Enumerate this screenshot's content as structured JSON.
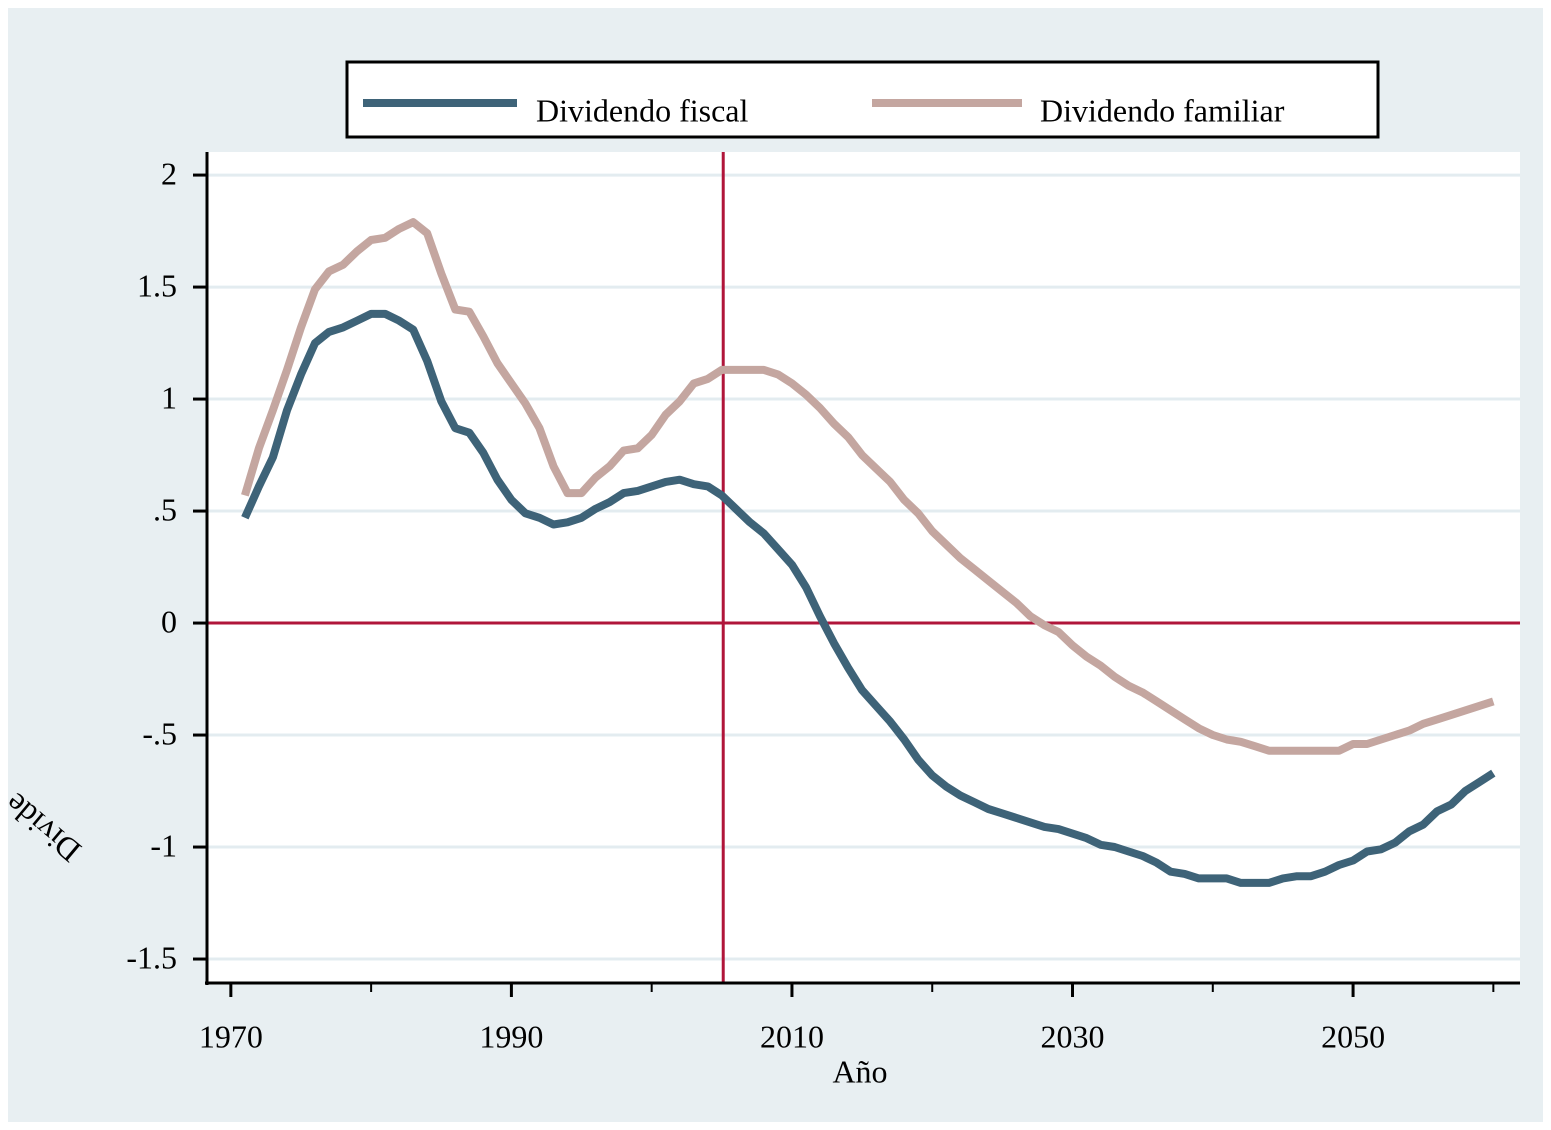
{
  "chart_data": {
    "type": "line",
    "x_label": "Año",
    "y_label": "Divide",
    "x": [
      1971,
      1972,
      1973,
      1974,
      1975,
      1976,
      1977,
      1978,
      1979,
      1980,
      1981,
      1982,
      1983,
      1984,
      1985,
      1986,
      1987,
      1988,
      1989,
      1990,
      1991,
      1992,
      1993,
      1994,
      1995,
      1996,
      1997,
      1998,
      1999,
      2000,
      2001,
      2002,
      2003,
      2004,
      2005,
      2006,
      2007,
      2008,
      2009,
      2010,
      2011,
      2012,
      2013,
      2014,
      2015,
      2016,
      2017,
      2018,
      2019,
      2020,
      2021,
      2022,
      2023,
      2024,
      2025,
      2026,
      2027,
      2028,
      2029,
      2030,
      2031,
      2032,
      2033,
      2034,
      2035,
      2036,
      2037,
      2038,
      2039,
      2040,
      2041,
      2042,
      2043,
      2044,
      2045,
      2046,
      2047,
      2048,
      2049,
      2050,
      2051,
      2052,
      2053,
      2054,
      2055,
      2056,
      2057,
      2058,
      2059,
      2060
    ],
    "series": [
      {
        "name": "Dividendo fiscal",
        "color": "#3e6378",
        "values": [
          0.47,
          0.61,
          0.74,
          0.95,
          1.11,
          1.25,
          1.3,
          1.32,
          1.35,
          1.38,
          1.38,
          1.35,
          1.31,
          1.17,
          0.99,
          0.87,
          0.85,
          0.76,
          0.64,
          0.55,
          0.49,
          0.47,
          0.44,
          0.45,
          0.47,
          0.51,
          0.54,
          0.58,
          0.59,
          0.61,
          0.63,
          0.64,
          0.62,
          0.61,
          0.57,
          0.51,
          0.45,
          0.4,
          0.33,
          0.26,
          0.16,
          0.03,
          -0.09,
          -0.2,
          -0.3,
          -0.37,
          -0.44,
          -0.52,
          -0.61,
          -0.68,
          -0.73,
          -0.77,
          -0.8,
          -0.83,
          -0.85,
          -0.87,
          -0.89,
          -0.91,
          -0.92,
          -0.94,
          -0.96,
          -0.99,
          -1.0,
          -1.02,
          -1.04,
          -1.07,
          -1.11,
          -1.12,
          -1.14,
          -1.14,
          -1.14,
          -1.16,
          -1.16,
          -1.16,
          -1.14,
          -1.13,
          -1.13,
          -1.11,
          -1.08,
          -1.06,
          -1.02,
          -1.01,
          -0.98,
          -0.93,
          -0.9,
          -0.84,
          -0.81,
          -0.75,
          -0.71,
          -0.67
        ]
      },
      {
        "name": "Dividendo familiar",
        "color": "#c4a6a0",
        "values": [
          0.57,
          0.78,
          0.95,
          1.13,
          1.32,
          1.49,
          1.57,
          1.6,
          1.66,
          1.71,
          1.72,
          1.76,
          1.79,
          1.74,
          1.56,
          1.4,
          1.39,
          1.28,
          1.16,
          1.07,
          0.98,
          0.87,
          0.7,
          0.58,
          0.58,
          0.65,
          0.7,
          0.77,
          0.78,
          0.84,
          0.93,
          0.99,
          1.07,
          1.09,
          1.13,
          1.13,
          1.13,
          1.13,
          1.11,
          1.07,
          1.02,
          0.96,
          0.89,
          0.83,
          0.75,
          0.69,
          0.63,
          0.55,
          0.49,
          0.41,
          0.35,
          0.29,
          0.24,
          0.19,
          0.14,
          0.09,
          0.03,
          -0.01,
          -0.04,
          -0.1,
          -0.15,
          -0.19,
          -0.24,
          -0.28,
          -0.31,
          -0.35,
          -0.39,
          -0.43,
          -0.47,
          -0.5,
          -0.52,
          -0.53,
          -0.55,
          -0.57,
          -0.57,
          -0.57,
          -0.57,
          -0.57,
          -0.57,
          -0.54,
          -0.54,
          -0.52,
          -0.5,
          -0.48,
          -0.45,
          -0.43,
          -0.41,
          -0.39,
          -0.37,
          -0.35
        ]
      }
    ],
    "xlim": [
      1968.3,
      2061.9
    ],
    "xticks": [
      1970,
      1990,
      2010,
      2030,
      2050
    ],
    "xminor_ticks": [
      1980,
      2000,
      2020,
      2040,
      2060
    ],
    "ylim": [
      -1.607,
      2.103
    ],
    "yticks": [
      {
        "value": -1.5,
        "label": "-1.5"
      },
      -1,
      {
        "value": -0.5,
        "label": "-.5"
      },
      0,
      {
        "value": 0.5,
        "label": ".5"
      },
      1,
      1.5,
      2
    ],
    "grid": true,
    "legend": true,
    "reference_lines": {
      "x": 2005.1,
      "y": 0,
      "color": "#b0153a"
    }
  }
}
